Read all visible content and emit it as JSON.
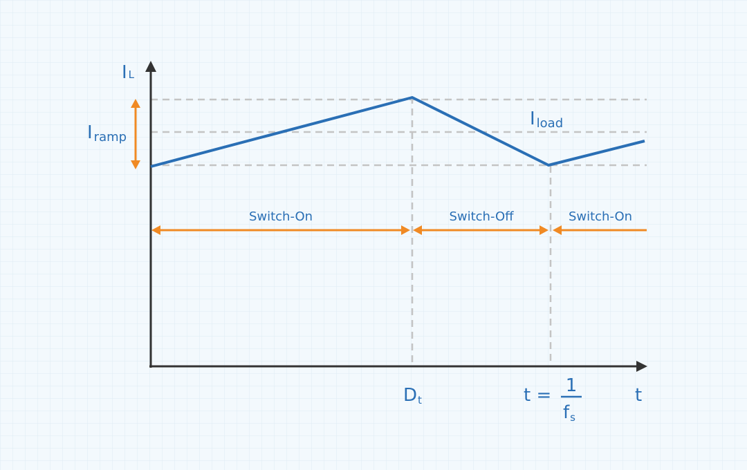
{
  "y_axis_label": {
    "main": "I",
    "sub": "L"
  },
  "x_axis_label": "t",
  "ramp_label": {
    "main": "I",
    "sub": "ramp"
  },
  "load_label": {
    "main": "I",
    "sub": "load"
  },
  "phases": [
    "Switch-On",
    "Switch-Off",
    "Switch-On"
  ],
  "duty_label": {
    "main": "D",
    "sub": "t"
  },
  "period_label": {
    "prefix": "t =",
    "numerator": "1",
    "denominator": {
      "main": "f",
      "sub": "s"
    }
  }
}
